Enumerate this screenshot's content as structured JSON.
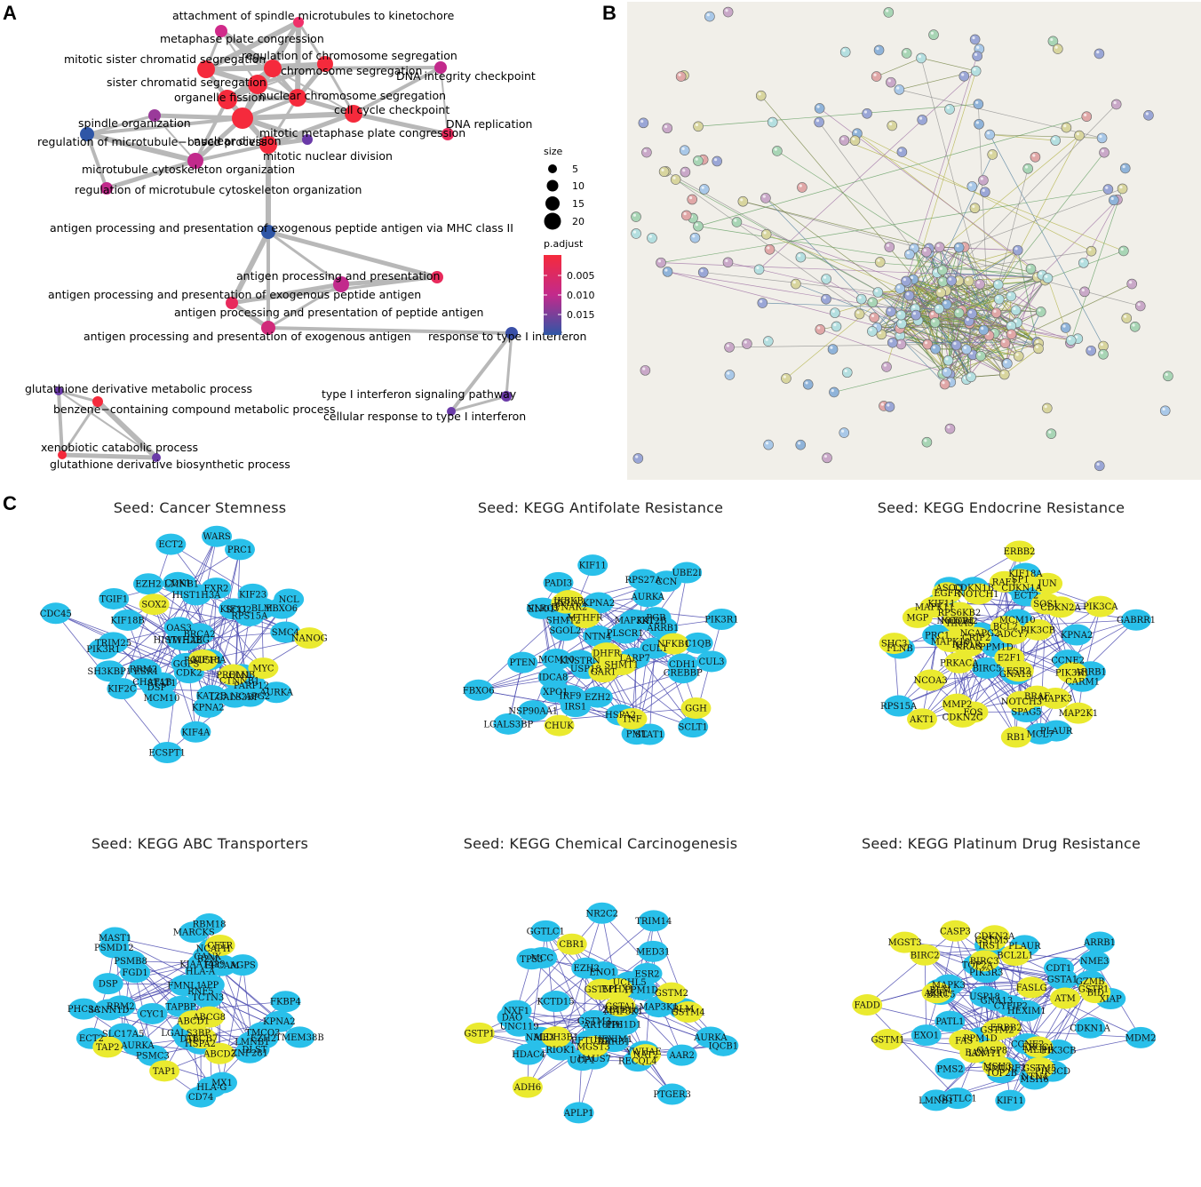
{
  "panel_letters": {
    "a": "A",
    "b": "B",
    "c": "C"
  },
  "colors": {
    "high": "#f52a3c",
    "mid": "#c22a8c",
    "low": "#2f56a6",
    "blue_node": "#29c0ea",
    "yellow_node": "#eaea2f",
    "edge": "#4b4bb0",
    "string_bg": "#f1efe9"
  },
  "panelA": {
    "legend_size_title": "size",
    "legend_sizes": [
      "5",
      "10",
      "15",
      "20"
    ],
    "legend_color_title": "p.adjust",
    "legend_colors": [
      "0.005",
      "0.010",
      "0.015"
    ],
    "terms": [
      {
        "label": "attachment of spindle microtubules to kinetochore",
        "c": "#f0306a"
      },
      {
        "label": "metaphase plate congression",
        "c": "#d02a8a"
      },
      {
        "label": "regulation of chromosome segregation",
        "c": "#f52a3c"
      },
      {
        "label": "mitotic sister chromatid segregation",
        "c": "#f52a3c"
      },
      {
        "label": "chromosome segregation",
        "c": "#f52a3c"
      },
      {
        "label": "DNA integrity checkpoint",
        "c": "#c22a8c"
      },
      {
        "label": "sister chromatid segregation",
        "c": "#f52a3c"
      },
      {
        "label": "organelle fission",
        "c": "#f52a3c"
      },
      {
        "label": "nuclear chromosome segregation",
        "c": "#f52a3c"
      },
      {
        "label": "cell cycle checkpoint",
        "c": "#f52a3c"
      },
      {
        "label": "DNA replication",
        "c": "#e82a5c"
      },
      {
        "label": "spindle organization",
        "c": "#9a3a9a"
      },
      {
        "label": "nuclear division",
        "c": "#f52a3c"
      },
      {
        "label": "regulation of microtubule−based process",
        "c": "#2f56a6"
      },
      {
        "label": "mitotic metaphase plate congression",
        "c": "#6a3aa8"
      },
      {
        "label": "mitotic nuclear division",
        "c": "#f52a3c"
      },
      {
        "label": "microtubule cytoskeleton organization",
        "c": "#c22a8c"
      },
      {
        "label": "regulation of microtubule cytoskeleton organization",
        "c": "#c22a8c"
      },
      {
        "label": "antigen processing and presentation of exogenous peptide antigen via MHC class II",
        "c": "#2f56a6"
      },
      {
        "label": "antigen processing and presentation",
        "c": "#e82a5c"
      },
      {
        "label": "antigen processing and presentation of exogenous peptide antigen",
        "c": "#c22a8c"
      },
      {
        "label": "antigen processing and presentation of peptide antigen",
        "c": "#e82a5c"
      },
      {
        "label": "antigen processing and presentation of exogenous antigen",
        "c": "#d02a7a"
      },
      {
        "label": "response to type I interferon",
        "c": "#3a50a8"
      },
      {
        "label": "glutathione derivative metabolic process",
        "c": "#6a3aa8"
      },
      {
        "label": "type I interferon signaling pathway",
        "c": "#6a3aa8"
      },
      {
        "label": "benzene−containing compound metabolic process",
        "c": "#f52a3c"
      },
      {
        "label": "cellular response to type I interferon",
        "c": "#6a3aa8"
      },
      {
        "label": "xenobiotic catabolic process",
        "c": "#f52a3c"
      },
      {
        "label": "glutathione derivative biosynthetic process",
        "c": "#6a3aa8"
      }
    ]
  },
  "panelC": {
    "networks": [
      {
        "title": "Seed: Cancer Stemness",
        "blue": [
          "ECT2",
          "SCO2",
          "NCAPG2",
          "GGPS",
          "RRM2",
          "WARS",
          "PARP12",
          "OAS3",
          "STAT1",
          "TGIF1",
          "AURKA",
          "FLNB",
          "KIF18A",
          "BLM",
          "KIF2C",
          "NCL",
          "TRIM25",
          "KIF18B",
          "ESR1",
          "KPNA2",
          "SMC4",
          "BRCA2",
          "DSP",
          "RPS15A",
          "HIST1H2BG",
          "KIF4A",
          "LMNB1",
          "CTNNB1",
          "CDK2",
          "HIST1H3A",
          "CDC45",
          "EZH2",
          "CHAF1B",
          "MCM10",
          "KIF11",
          "PRC1",
          "CDK1",
          "KAT2B",
          "PIK3R1",
          "LGALS3BP",
          "FBXO6",
          "YWHAE",
          "KIF23",
          "SH3KBP1",
          "FXR2",
          "ECSPT1"
        ],
        "yellow": [
          "MYC",
          "POU5F1",
          "SOX2",
          "PROM1",
          "NANOG"
        ]
      },
      {
        "title": "Seed: KEGG Antifolate Resistance",
        "blue": [
          "PIK3R1",
          "SGOL2",
          "PTEN",
          "PADI3",
          "IRS1",
          "UBE2I",
          "MAP3K1",
          "IDCA8",
          "CREBBP",
          "C1QB",
          "SCLT1",
          "XPO1",
          "IRF9",
          "CCN",
          "LARP7",
          "PML",
          "PGR",
          "NLRC5",
          "ARRB1",
          "IFNAR2",
          "STAT1",
          "KAT2B",
          "USP18",
          "HSPA2",
          "MCM10",
          "NSP90AA1",
          "CUL1",
          "RPS27A",
          "CDH1",
          "PLSCR1",
          "FBXO6",
          "KPNA2",
          "EZH2",
          "SHMT2",
          "KIF11",
          "LGALS3BP",
          "NTN4",
          "KNSTRN",
          "ENO1",
          "AURKA",
          "CUL3"
        ],
        "yellow": [
          "DHFR",
          "MTHFR",
          "NFKB1",
          "IKBKB",
          "CHUK",
          "RELA",
          "SHMT1",
          "TNF",
          "GART",
          "GGH"
        ]
      },
      {
        "title": "Seed: KEGG Endocrine Resistance",
        "blue": [
          "MCL7",
          "SPAG5",
          "KIF18A",
          "CCNE2",
          "GNA13",
          "GABRR1",
          "CDKN1B",
          "CARM1",
          "ECT2",
          "PPM1D",
          "PLAUR",
          "ASCO",
          "NCAPG2",
          "MCM10",
          "CDKN1A",
          "FLNB",
          "BIRC5",
          "KIF11",
          "PRC1",
          "ARRB1",
          "RPS15A",
          "KPNA2"
        ],
        "yellow": [
          "MMP2",
          "CRIP2",
          "NOTCH3",
          "SHC3",
          "FOS",
          "MGP",
          "SOS1",
          "PIK3R1",
          "CDKN2C",
          "SP1",
          "BRAF",
          "ADCY7",
          "NCOR1",
          "PIK3CA",
          "MAPK10",
          "MAPK11",
          "NOTCH1",
          "NOTCH2",
          "MAP2K1",
          "BCL2",
          "PRKACA",
          "HRAS",
          "KRAS",
          "AKT1",
          "E2F1",
          "ESR2",
          "RAF1",
          "NCOA3",
          "RB1",
          "CDKN2A",
          "IGF1R",
          "PIK3CB",
          "MAPK3",
          "ERBB2",
          "EGFR",
          "JUN",
          "RPS6KB2"
        ]
      },
      {
        "title": "Seed: KEGG ABC Transporters",
        "blue": [
          "ECT2",
          "AGPS",
          "DLST",
          "CYC1",
          "LMNB1",
          "TMEM38B",
          "TAPBP",
          "B2M",
          "DSP",
          "RNF5",
          "HLA-G",
          "TCTN3",
          "NCAPH",
          "HLA-A",
          "SCNN1D",
          "RBM18",
          "MARCKS",
          "PSMB8",
          "TMCO3",
          "RRM2",
          "PSMD12",
          "KPNA2",
          "PSMC3",
          "EPCAM",
          "FKBP4",
          "MAST1",
          "FGD1",
          "DTL",
          "FMNL1",
          "HSPA2",
          "MX1",
          "APP",
          "EZH2",
          "ZNF281",
          "SLC17A5",
          "PHC3A",
          "AURKA",
          "CANX",
          "KIAA1429",
          "LGALS3BP",
          "CD74"
        ],
        "yellow": [
          "ABCD1",
          "ABCD3",
          "ABCG8",
          "TAP1",
          "TAP2",
          "CFTR",
          "ABCB7"
        ]
      },
      {
        "title": "Seed: KEGG Chemical Carcinogenesis",
        "blue": [
          "GGTLC1",
          "KCTD15",
          "UNC119",
          "MED31",
          "ZBTB16",
          "PTGER3",
          "HAUS7",
          "DAO",
          "UCP1",
          "AR16IP6",
          "APLP1",
          "HEXIM1",
          "MAP3K1",
          "EZH2",
          "ARRB1",
          "IQCB1",
          "RECQL4",
          "TP53",
          "MCC",
          "PPM1D",
          "TRIM14",
          "PIH1D1",
          "RIOK1",
          "YWHAE",
          "ENO1",
          "NR2C2",
          "UCHL5",
          "MAP3K1",
          "NXF1",
          "HDAC4",
          "AAR2",
          "ESR2",
          "BLM",
          "NME3",
          "EFTUD2",
          "AURKA",
          "GSTM3"
        ],
        "yellow": [
          "GSTA1",
          "EPHX1",
          "GSTM4",
          "ADH6",
          "GSTM1",
          "GSTM2",
          "CBR1",
          "NAT2",
          "GSTP1",
          "ALDH3B1",
          "MGST3"
        ]
      },
      {
        "title": "Seed: KEGG Platinum Drug Resistance",
        "blue": [
          "NME3",
          "NTN4",
          "PLAUR",
          "TOP2B",
          "GSTA1",
          "KIF11",
          "CDKN1A",
          "CCNE2",
          "HEXIM1",
          "USP18",
          "GGTLC1",
          "PATL1",
          "SMURF2",
          "TOP2A",
          "CDT1",
          "LMNB1",
          "MAPK3",
          "GNA13",
          "MSH6",
          "PMS2",
          "MDM2",
          "MLH1",
          "PPM1D",
          "EXO1",
          "BLM",
          "ARRB1",
          "PIK3CD",
          "IRS1",
          "LCMT1",
          "BIRC5",
          "XIAP",
          "GZMB",
          "CYFIP2",
          "PIK3R3",
          "PIK3CB"
        ],
        "yellow": [
          "MGST3",
          "ERCC1",
          "GSTM5",
          "GSTP1",
          "GSTM3",
          "GSTM1",
          "GSTM2",
          "CDKN2A",
          "MSH3",
          "ATM",
          "FADD",
          "BID",
          "CASP8",
          "FAS",
          "FASLG",
          "BIRC2",
          "BIRC3",
          "BAX",
          "ERBB2",
          "BCL2L1",
          "CASP3",
          "AKT1"
        ]
      }
    ]
  }
}
